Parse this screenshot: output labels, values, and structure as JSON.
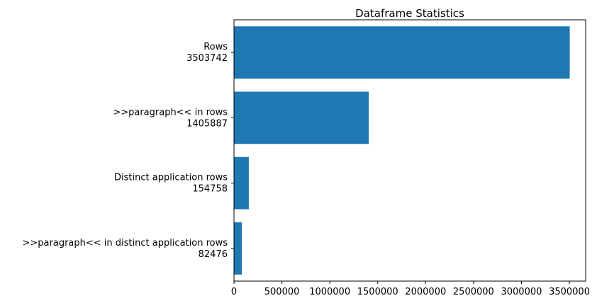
{
  "chart_data": {
    "type": "bar",
    "orientation": "horizontal",
    "title": "Dataframe Statistics",
    "xlabel": "",
    "ylabel": "",
    "categories": [
      [
        "Rows",
        "3503742"
      ],
      [
        ">>paragraph<< in rows",
        "1405887"
      ],
      [
        "Distinct application rows",
        "154758"
      ],
      [
        ">>paragraph<< in distinct application rows",
        "82476"
      ]
    ],
    "values": [
      3503742,
      1405887,
      154758,
      82476
    ],
    "xlim": [
      0,
      3670000
    ],
    "xticks": [
      0,
      500000,
      1000000,
      1500000,
      2000000,
      2500000,
      3000000,
      3500000
    ],
    "xtick_labels": [
      "0",
      "500000",
      "1000000",
      "1500000",
      "2000000",
      "2500000",
      "3000000",
      "3500000"
    ],
    "bar_color": "#1f77b4",
    "grid": false,
    "legend": "none"
  }
}
